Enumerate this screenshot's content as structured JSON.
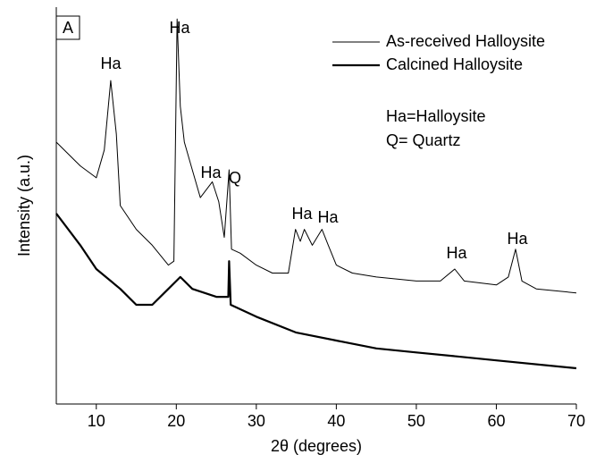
{
  "chart_data": {
    "type": "line",
    "panel_label": "A",
    "xlabel": "2θ (degrees)",
    "ylabel": "Intensity (a.u.)",
    "xlim": [
      5,
      70
    ],
    "xticks": [
      10,
      20,
      30,
      40,
      50,
      60,
      70
    ],
    "ylim": [
      0,
      100
    ],
    "series": [
      {
        "name": "As-received Halloysite",
        "color": "#000000",
        "line_width": 1,
        "x": [
          5,
          8,
          10,
          11,
          11.8,
          12.5,
          13,
          15,
          17,
          19,
          19.7,
          20.1,
          20.5,
          21,
          22,
          23,
          24.5,
          25.3,
          26,
          26.6,
          26.9,
          28,
          30,
          32,
          34,
          34.9,
          35.5,
          36,
          37,
          38.2,
          39,
          40,
          42,
          45,
          50,
          53,
          54.8,
          56,
          60,
          61.5,
          62.4,
          63.2,
          65,
          70
        ],
        "values": [
          66,
          60,
          57,
          64,
          81.5,
          68,
          50,
          44,
          40,
          35,
          36,
          97,
          75,
          66,
          59,
          52,
          56,
          51,
          42,
          59,
          39,
          38,
          35,
          33,
          33,
          44,
          41,
          44,
          40,
          44,
          40,
          35,
          33,
          32,
          31,
          31,
          34,
          31,
          30,
          32,
          39,
          31,
          29,
          28
        ]
      },
      {
        "name": "Calcined Halloysite",
        "color": "#000000",
        "line_width": 2.2,
        "x": [
          5,
          8,
          10,
          13,
          15,
          17,
          19,
          20.5,
          22,
          25,
          26.5,
          26.6,
          26.8,
          30,
          35,
          40,
          45,
          50,
          55,
          60,
          70
        ],
        "values": [
          48,
          40,
          34,
          29,
          25,
          25,
          29,
          32,
          29,
          27,
          27,
          36,
          25,
          22,
          18,
          16,
          14,
          13,
          12,
          11,
          9
        ]
      }
    ],
    "annotations": [
      "Ha",
      "Ha",
      "Ha",
      "Q",
      "Ha",
      "Ha",
      "Ha",
      "Ha"
    ],
    "notes": [
      "Ha=Halloysite",
      "Q= Quartz"
    ]
  }
}
